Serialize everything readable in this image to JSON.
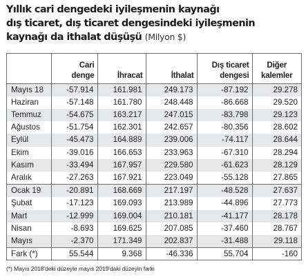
{
  "title": {
    "line1": "Yıllık cari dengedeki iyileşmenin kaynağı",
    "line2": "dış ticaret, dış ticaret dengesindeki iyileşmenin",
    "line3": "kaynağı da ithalat düşüşü",
    "unit": "(Milyon $)"
  },
  "table": {
    "headers": {
      "col1": [
        "Cari",
        "denge"
      ],
      "col2": [
        "İhracat"
      ],
      "col3": [
        "İthalat"
      ],
      "col4": [
        "Dış ticaret",
        "dengesi"
      ],
      "col5": [
        "Diğer",
        "kalemler"
      ]
    },
    "rows": [
      {
        "label": "Mayıs 18",
        "cari": "-57.914",
        "ihracat": "161.981",
        "ithalat": "249.173",
        "dis_ticaret": "-87.192",
        "diger": "29.278"
      },
      {
        "label": "Haziran",
        "cari": "-57.148",
        "ihracat": "161.780",
        "ithalat": "248.448",
        "dis_ticaret": "-86.668",
        "diger": "29.520"
      },
      {
        "label": "Temmuz",
        "cari": "-54.675",
        "ihracat": "163.217",
        "ithalat": "247.015",
        "dis_ticaret": "-83.798",
        "diger": "29.123"
      },
      {
        "label": "Ağustos",
        "cari": "-51.754",
        "ihracat": "162.301",
        "ithalat": "242.657",
        "dis_ticaret": "-80.356",
        "diger": "28.602"
      },
      {
        "label": "Eylül",
        "cari": "-45.473",
        "ihracat": "164.889",
        "ithalat": "239.006",
        "dis_ticaret": "-74.117",
        "diger": "28.644"
      },
      {
        "label": "Ekim",
        "cari": "-39.016",
        "ihracat": "166.653",
        "ithalat": "233.963",
        "dis_ticaret": "-67.310",
        "diger": "28.294"
      },
      {
        "label": "Kasım",
        "cari": "-33.494",
        "ihracat": "167.957",
        "ithalat": "229.580",
        "dis_ticaret": "-61.623",
        "diger": "28.129"
      },
      {
        "label": "Aralık",
        "cari": "-27.263",
        "ihracat": "167.921",
        "ithalat": "223.049",
        "dis_ticaret": "-55.128",
        "diger": "27.865"
      },
      {
        "label": "Ocak 19",
        "cari": "-20.891",
        "ihracat": "168.669",
        "ithalat": "217.197",
        "dis_ticaret": "-48.528",
        "diger": "27.637"
      },
      {
        "label": "Şubat",
        "cari": "-17.123",
        "ihracat": "169.093",
        "ithalat": "213.989",
        "dis_ticaret": "-44.896",
        "diger": "27.773"
      },
      {
        "label": "Mart",
        "cari": "-12.999",
        "ihracat": "169.004",
        "ithalat": "210.181",
        "dis_ticaret": "-41.177",
        "diger": "28.178"
      },
      {
        "label": "Nisan",
        "cari": "-8.693",
        "ihracat": "169.625",
        "ithalat": "207.085",
        "dis_ticaret": "-37.460",
        "diger": "28.767"
      },
      {
        "label": "Mayıs",
        "cari": "-2.370",
        "ihracat": "171.349",
        "ithalat": "202.837",
        "dis_ticaret": "-31.488",
        "diger": "29.118"
      },
      {
        "label": "Fark (*)",
        "cari": "55.544",
        "ihracat": "9.368",
        "ithalat": "-46.336",
        "dis_ticaret": "55.704",
        "diger": "-160"
      }
    ]
  },
  "footnote": "(*) Mayıs 2018'deki düzeyle mayıs 2019'daki düzeyin farkı",
  "colors": {
    "stripe": "#e6e7e8",
    "border": "#6d6e70",
    "text": "#231f20"
  }
}
